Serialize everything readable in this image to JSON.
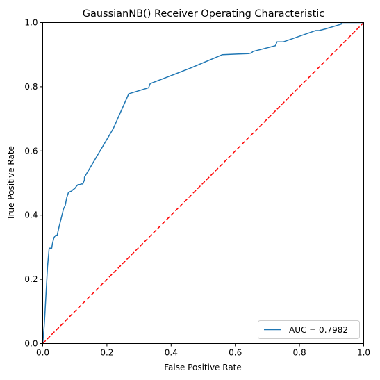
{
  "chart_data": {
    "type": "line",
    "title": "GaussianNB() Receiver Operating Characteristic",
    "xlabel": "False Positive Rate",
    "ylabel": "True Positive Rate",
    "xlim": [
      0.0,
      1.0
    ],
    "ylim": [
      0.0,
      1.0
    ],
    "x_ticks": [
      "0.0",
      "0.2",
      "0.4",
      "0.6",
      "0.8",
      "1.0"
    ],
    "y_ticks": [
      "0.0",
      "0.2",
      "0.4",
      "0.6",
      "0.8",
      "1.0"
    ],
    "grid": false,
    "legend_position": "lower-right",
    "series": [
      {
        "name": "AUC = 0.7982",
        "color": "#1f77b4",
        "style": "solid",
        "x": [
          0.0,
          0.005,
          0.01,
          0.015,
          0.02,
          0.025,
          0.028,
          0.03,
          0.035,
          0.04,
          0.045,
          0.05,
          0.055,
          0.06,
          0.065,
          0.07,
          0.075,
          0.08,
          0.085,
          0.09,
          0.095,
          0.1,
          0.105,
          0.11,
          0.115,
          0.12,
          0.125,
          0.13,
          0.13,
          0.22,
          0.268,
          0.33,
          0.335,
          0.46,
          0.56,
          0.61,
          0.64,
          0.65,
          0.655,
          0.725,
          0.73,
          0.75,
          0.85,
          0.86,
          0.88,
          0.93,
          0.93,
          1.0
        ],
        "y": [
          0.0,
          0.06,
          0.15,
          0.24,
          0.297,
          0.297,
          0.297,
          0.31,
          0.33,
          0.337,
          0.337,
          0.36,
          0.38,
          0.4,
          0.42,
          0.43,
          0.455,
          0.47,
          0.473,
          0.475,
          0.48,
          0.483,
          0.49,
          0.495,
          0.495,
          0.497,
          0.497,
          0.51,
          0.518,
          0.67,
          0.778,
          0.797,
          0.81,
          0.858,
          0.9,
          0.902,
          0.903,
          0.905,
          0.91,
          0.928,
          0.94,
          0.94,
          0.975,
          0.975,
          0.98,
          0.995,
          1.0,
          1.0
        ]
      },
      {
        "name": "",
        "color": "#ff0000",
        "style": "dashed",
        "x": [
          0.0,
          1.0
        ],
        "y": [
          0.0,
          1.0
        ]
      }
    ]
  }
}
